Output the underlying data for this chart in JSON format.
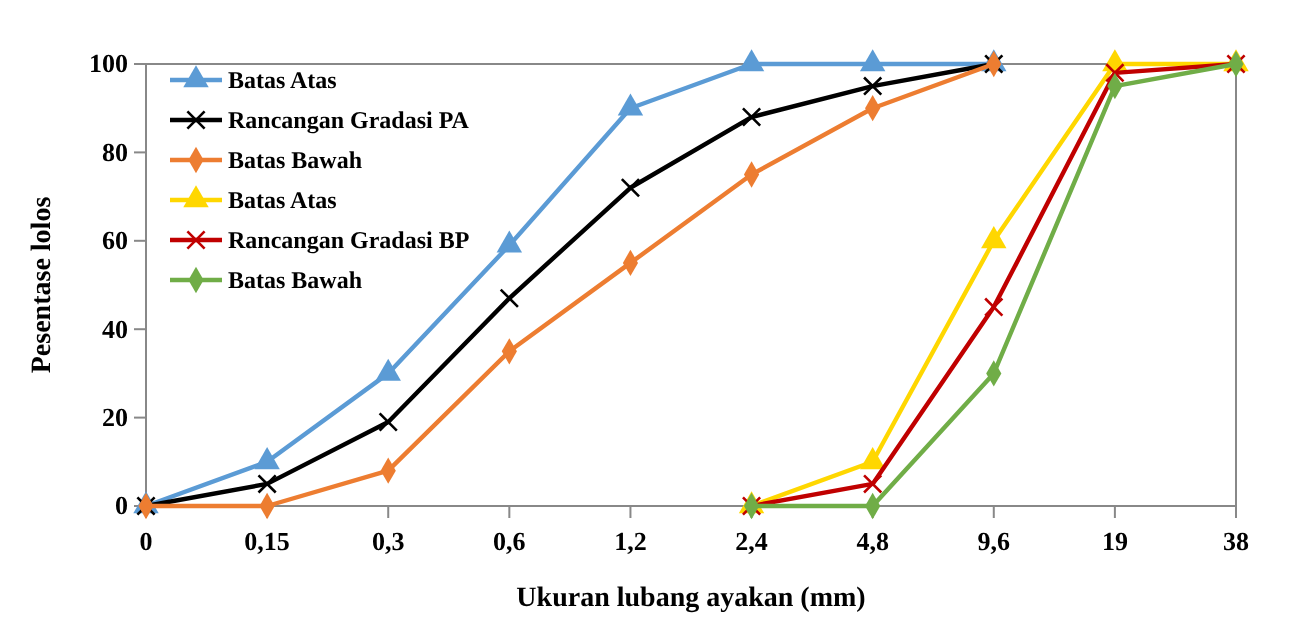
{
  "chart_data": {
    "type": "line",
    "xlabel": "Ukuran lubang ayakan (mm)",
    "ylabel": "Pesentase lolos",
    "categories": [
      "0",
      "0,15",
      "0,3",
      "0,6",
      "1,2",
      "2,4",
      "4,8",
      "9,6",
      "19",
      "38"
    ],
    "ylim": [
      0,
      100
    ],
    "yticks": [
      0,
      20,
      40,
      60,
      80,
      100
    ],
    "grid": false,
    "legend": "top left",
    "series": [
      {
        "name": "Batas Atas",
        "color": "#5b9bd5",
        "marker": "triangle",
        "values": [
          0,
          10,
          30,
          59,
          90,
          100,
          100,
          100,
          null,
          null
        ]
      },
      {
        "name": "Rancangan Gradasi PA",
        "color": "#000000",
        "marker": "cross",
        "values": [
          0,
          5,
          19,
          47,
          72,
          88,
          95,
          100,
          null,
          null
        ]
      },
      {
        "name": "Batas Bawah",
        "color": "#ed7d31",
        "marker": "diamond",
        "values": [
          0,
          0,
          8,
          35,
          55,
          75,
          90,
          100,
          null,
          null
        ]
      },
      {
        "name": "Batas Atas",
        "color": "#ffd700",
        "marker": "triangle",
        "values": [
          null,
          null,
          null,
          null,
          null,
          0,
          10,
          60,
          100,
          100
        ]
      },
      {
        "name": "Rancangan Gradasi BP",
        "color": "#c00000",
        "marker": "cross",
        "values": [
          null,
          null,
          null,
          null,
          null,
          0,
          5,
          45,
          98,
          100
        ]
      },
      {
        "name": "Batas Bawah",
        "color": "#70ad47",
        "marker": "diamond",
        "values": [
          null,
          null,
          null,
          null,
          null,
          0,
          0,
          30,
          95,
          100
        ]
      }
    ]
  }
}
